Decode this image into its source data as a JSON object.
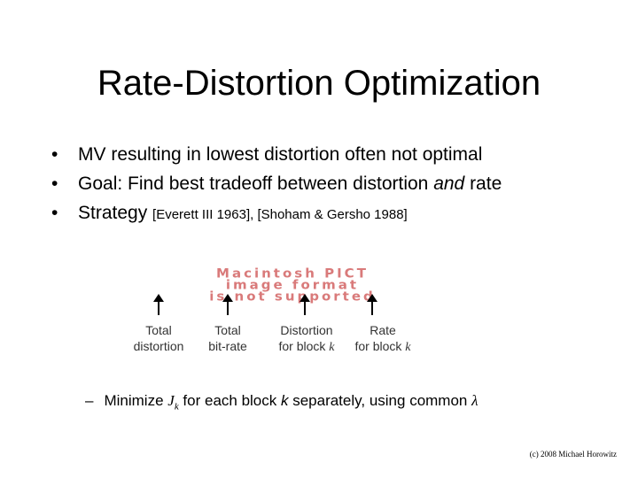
{
  "slide": {
    "title": "Rate-Distortion Optimization",
    "bullets": [
      {
        "text": "MV resulting in lowest distortion often not optimal"
      },
      {
        "pre": "Goal: Find best tradeoff between distortion ",
        "em": "and",
        "post": " rate"
      },
      {
        "text": "Strategy ",
        "refs": "[Everett III 1963], [Shoham & Gersho 1988]"
      }
    ],
    "placeholder_image": {
      "line1": "Macintosh PICT",
      "line2": "image format",
      "line3": "is not supported"
    },
    "equation_labels": [
      {
        "line1": "Total",
        "line2": "distortion"
      },
      {
        "line1": "Total",
        "line2": "bit-rate"
      },
      {
        "line1": "Distortion",
        "line2_pre": "for block ",
        "line2_var": "k"
      },
      {
        "line1": "Rate",
        "line2_pre": "for block ",
        "line2_var": "k"
      }
    ],
    "sub_bullet": {
      "dash": "–",
      "pre": "Minimize ",
      "var_J": "J",
      "var_J_sub": "k",
      "mid": " for each block ",
      "var_k": "k",
      "post": " separately, using common ",
      "lambda": "λ"
    },
    "credit": "(c) 2008 Michael Horowitz"
  }
}
